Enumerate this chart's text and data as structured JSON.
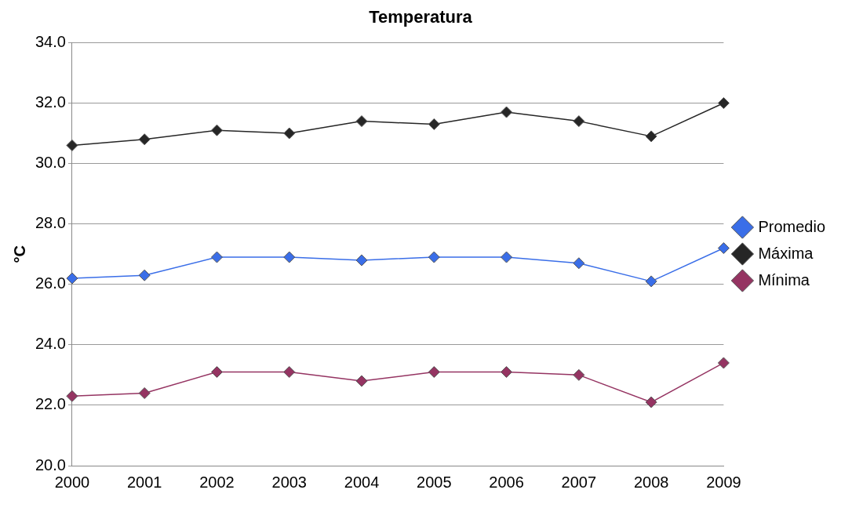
{
  "chart_data": {
    "type": "line",
    "title": "Temperatura",
    "ylabel": "°C",
    "categories": [
      "2000",
      "2001",
      "2002",
      "2003",
      "2004",
      "2005",
      "2006",
      "2007",
      "2008",
      "2009"
    ],
    "series": [
      {
        "name": "Promedio",
        "color": "#3a6ee8",
        "values": [
          26.2,
          26.3,
          26.9,
          26.9,
          26.8,
          26.9,
          26.9,
          26.7,
          26.1,
          27.2
        ]
      },
      {
        "name": "Máxima",
        "color": "#262626",
        "values": [
          30.6,
          30.8,
          31.1,
          31.0,
          31.4,
          31.3,
          31.7,
          31.4,
          30.9,
          32.0
        ]
      },
      {
        "name": "Mínima",
        "color": "#953462",
        "values": [
          22.3,
          22.4,
          23.1,
          23.1,
          22.8,
          23.1,
          23.1,
          23.0,
          22.1,
          23.4
        ]
      }
    ],
    "ylim": [
      20,
      34
    ],
    "yticks": [
      {
        "value": 20,
        "label": "20.0"
      },
      {
        "value": 22,
        "label": "22.0"
      },
      {
        "value": 24,
        "label": "24.0"
      },
      {
        "value": 26,
        "label": "26.0"
      },
      {
        "value": 28,
        "label": "28.0"
      },
      {
        "value": 30,
        "label": "30.0"
      },
      {
        "value": 32,
        "label": "32.0"
      },
      {
        "value": 34,
        "label": "34.0"
      }
    ],
    "grid": "y",
    "legend": "right",
    "marker": "diamond",
    "line_style": "solid"
  }
}
